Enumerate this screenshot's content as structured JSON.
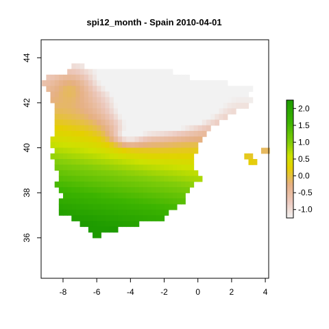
{
  "chart_data": {
    "type": "heatmap",
    "title": "spi12_month - Spain 2010-04-01",
    "xlabel": "",
    "ylabel": "",
    "xlim": [
      -9.3,
      4.2
    ],
    "ylim": [
      34.2,
      44.8
    ],
    "x_ticks": [
      -8,
      -6,
      -4,
      -2,
      0,
      2,
      4
    ],
    "y_ticks": [
      36,
      38,
      40,
      42,
      44
    ],
    "grid": false,
    "legend": {
      "placement": "right",
      "ticks": [
        2.0,
        1.5,
        1.0,
        0.5,
        0.0,
        -0.5,
        -1.0
      ],
      "tick_labels": [
        "2.0",
        "1.5",
        "1.0",
        "0.5",
        "0.0",
        "-0.5",
        "-1.0"
      ],
      "range": [
        -1.25,
        2.25
      ],
      "colors": [
        "#f2f2f2",
        "#e8c7b0",
        "#e0a878",
        "#e5d000",
        "#c4e000",
        "#6fcf00",
        "#2aa800",
        "#1a9900"
      ]
    },
    "cell_size": 0.25,
    "mask_rows": {
      "43.625": [
        [
          -7.5,
          -6.75
        ]
      ],
      "43.375": [
        [
          -7.75,
          -1.5
        ]
      ],
      "43.125": [
        [
          -9.0,
          -0.5
        ]
      ],
      "42.875": [
        [
          -9.25,
          1.75
        ]
      ],
      "42.625": [
        [
          -9.0,
          3.25
        ]
      ],
      "42.375": [
        [
          -8.75,
          3.0
        ]
      ],
      "42.125": [
        [
          -8.75,
          3.25
        ]
      ],
      "41.875": [
        [
          -8.5,
          3.0
        ]
      ],
      "41.625": [
        [
          -8.5,
          2.25
        ]
      ],
      "41.375": [
        [
          -8.5,
          1.75
        ]
      ],
      "41.125": [
        [
          -8.5,
          1.25
        ]
      ],
      "40.875": [
        [
          -8.5,
          0.75
        ]
      ],
      "40.625": [
        [
          -8.5,
          0.5
        ]
      ],
      "40.375": [
        [
          -8.75,
          0.25
        ]
      ],
      "40.125": [
        [
          -8.75,
          0.0
        ]
      ],
      "39.875": [
        [
          -8.5,
          0.0
        ],
        [
          3.75,
          4.25
        ]
      ],
      "39.625": [
        [
          -8.75,
          -0.25
        ],
        [
          2.75,
          3.25
        ]
      ],
      "39.375": [
        [
          -8.5,
          -0.25
        ],
        [
          3.0,
          3.5
        ]
      ],
      "39.125": [
        [
          -8.5,
          -0.25
        ]
      ],
      "38.875": [
        [
          -8.25,
          0.0
        ]
      ],
      "38.625": [
        [
          -8.25,
          0.25
        ]
      ],
      "38.375": [
        [
          -8.5,
          -0.25
        ]
      ],
      "38.125": [
        [
          -8.25,
          -0.5
        ]
      ],
      "37.875": [
        [
          -8.0,
          -0.75
        ]
      ],
      "37.625": [
        [
          -8.25,
          -0.75
        ]
      ],
      "37.375": [
        [
          -8.25,
          -1.25
        ]
      ],
      "37.125": [
        [
          -8.25,
          -1.75
        ]
      ],
      "36.875": [
        [
          -7.5,
          -2.0
        ]
      ],
      "36.625": [
        [
          -7.0,
          -3.5
        ]
      ],
      "36.375": [
        [
          -6.5,
          -4.75
        ]
      ],
      "36.125": [
        [
          -6.25,
          -5.75
        ]
      ]
    }
  }
}
